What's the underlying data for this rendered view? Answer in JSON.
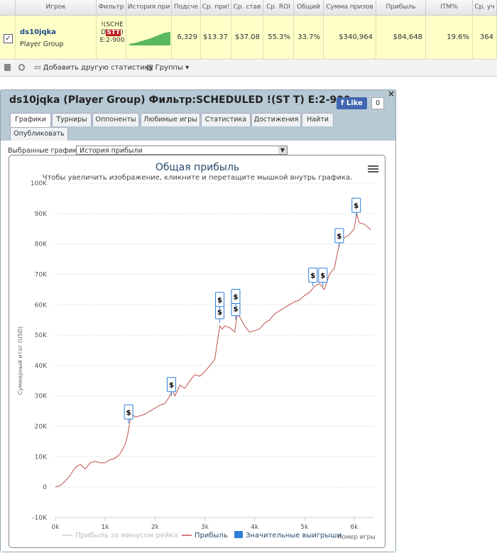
{
  "table": {
    "headers": [
      "Игрок",
      "Фильтр",
      "История при",
      "Подсче",
      "Ср. при!",
      "Ср. став",
      "Ср. ROI",
      "Общий",
      "Сумма призов",
      "Прибыль",
      "ITM%",
      "Ср. уч"
    ],
    "row": {
      "player": "ds10jqka",
      "group": "Player Group",
      "filter_pre": "!(SCHED",
      "filter_badge": "STT",
      "filter_post": ")E:2-900",
      "cells": [
        "6,329",
        "$13.37",
        "$37.08",
        "55.3%",
        "33.7%",
        "$340,964",
        "$84,648",
        "19.6%",
        "364"
      ]
    }
  },
  "toolbar": {
    "add_stats": "Добавить другую статистику",
    "groups": "Группы"
  },
  "panel": {
    "title": "ds10jqka (Player Group) Фильтр:SCHEDULED !(ST T) E:2-900",
    "like": "Like",
    "like_count": "0",
    "tabs": [
      "Графики",
      "Турниры",
      "Оппоненты",
      "Любимые игры",
      "Статистика",
      "Достижения",
      "Найти",
      "Опубликовать"
    ],
    "select_label": "Выбранные графики:",
    "select_value": "История прибыли"
  },
  "chart_data": {
    "type": "line",
    "title": "Общая прибыль",
    "subtitle": "Чтобы увеличить изображение, кликните и перетащите мышкой внутрь графика.",
    "y_label": "Суммарный итог (USD)",
    "x_label": "Номер игры",
    "xlim": [
      0,
      6400
    ],
    "xticks": [
      {
        "value": 0,
        "label": "0k"
      },
      {
        "value": 1000,
        "label": "1k"
      },
      {
        "value": 2000,
        "label": "2k"
      },
      {
        "value": 3000,
        "label": "3k"
      },
      {
        "value": 4000,
        "label": "4k"
      },
      {
        "value": 5000,
        "label": "5k"
      },
      {
        "value": 6000,
        "label": "6k"
      }
    ],
    "ylim": [
      -10000,
      100000
    ],
    "yticks": [
      {
        "value": -10000,
        "label": "-10K"
      },
      {
        "value": 0,
        "label": "0"
      },
      {
        "value": 10000,
        "label": "10K"
      },
      {
        "value": 20000,
        "label": "20K"
      },
      {
        "value": 30000,
        "label": "30K"
      },
      {
        "value": 40000,
        "label": "40K"
      },
      {
        "value": 50000,
        "label": "50K"
      },
      {
        "value": 60000,
        "label": "60K"
      },
      {
        "value": 70000,
        "label": "70K"
      },
      {
        "value": 80000,
        "label": "80K"
      },
      {
        "value": 90000,
        "label": "90K"
      },
      {
        "value": 100000,
        "label": "100K"
      }
    ],
    "grid": true,
    "series": [
      {
        "name": "Прибыль",
        "color": "#c0504d",
        "kind": "line",
        "x": [
          0,
          100,
          200,
          300,
          400,
          500,
          600,
          700,
          800,
          900,
          1000,
          1100,
          1200,
          1300,
          1400,
          1450,
          1500,
          1550,
          1600,
          1700,
          1800,
          1900,
          2000,
          2100,
          2200,
          2300,
          2350,
          2400,
          2500,
          2600,
          2700,
          2800,
          2900,
          3000,
          3100,
          3200,
          3300,
          3350,
          3400,
          3500,
          3600,
          3650,
          3700,
          3800,
          3900,
          4000,
          4100,
          4200,
          4300,
          4400,
          4500,
          4600,
          4700,
          4800,
          4900,
          5000,
          5100,
          5200,
          5300,
          5400,
          5500,
          5600,
          5700,
          5800,
          5900,
          6000,
          6050,
          6100,
          6200,
          6329
        ],
        "values": [
          0,
          500,
          2000,
          4000,
          6500,
          7500,
          6000,
          8000,
          8500,
          8000,
          8000,
          9000,
          9500,
          11000,
          14000,
          17000,
          22000,
          24000,
          23000,
          23500,
          24000,
          25000,
          26000,
          27000,
          27500,
          30000,
          32000,
          30000,
          33500,
          32500,
          35000,
          37000,
          36500,
          38000,
          40000,
          42000,
          53000,
          52000,
          53000,
          52500,
          51000,
          57000,
          56000,
          53000,
          51000,
          51500,
          52000,
          54000,
          55000,
          57000,
          58000,
          59000,
          60000,
          61000,
          61500,
          63000,
          64000,
          66000,
          67000,
          65000,
          70000,
          72000,
          80000,
          82000,
          83000,
          85000,
          90000,
          87000,
          86500,
          84648
        ]
      },
      {
        "name": "Значительные выигрыши",
        "color": "#2f7ed8",
        "kind": "flags",
        "marker_label": "$",
        "x": [
          1470,
          2330,
          3300,
          3300,
          3620,
          3620,
          5170,
          5370,
          5700,
          6040
        ],
        "values": [
          21000,
          30000,
          54000,
          58000,
          55000,
          59000,
          66000,
          66000,
          79000,
          89000
        ]
      },
      {
        "name": "Прибыль за минусом рейка",
        "color": "#cccccc",
        "kind": "line",
        "visible": false
      }
    ]
  }
}
